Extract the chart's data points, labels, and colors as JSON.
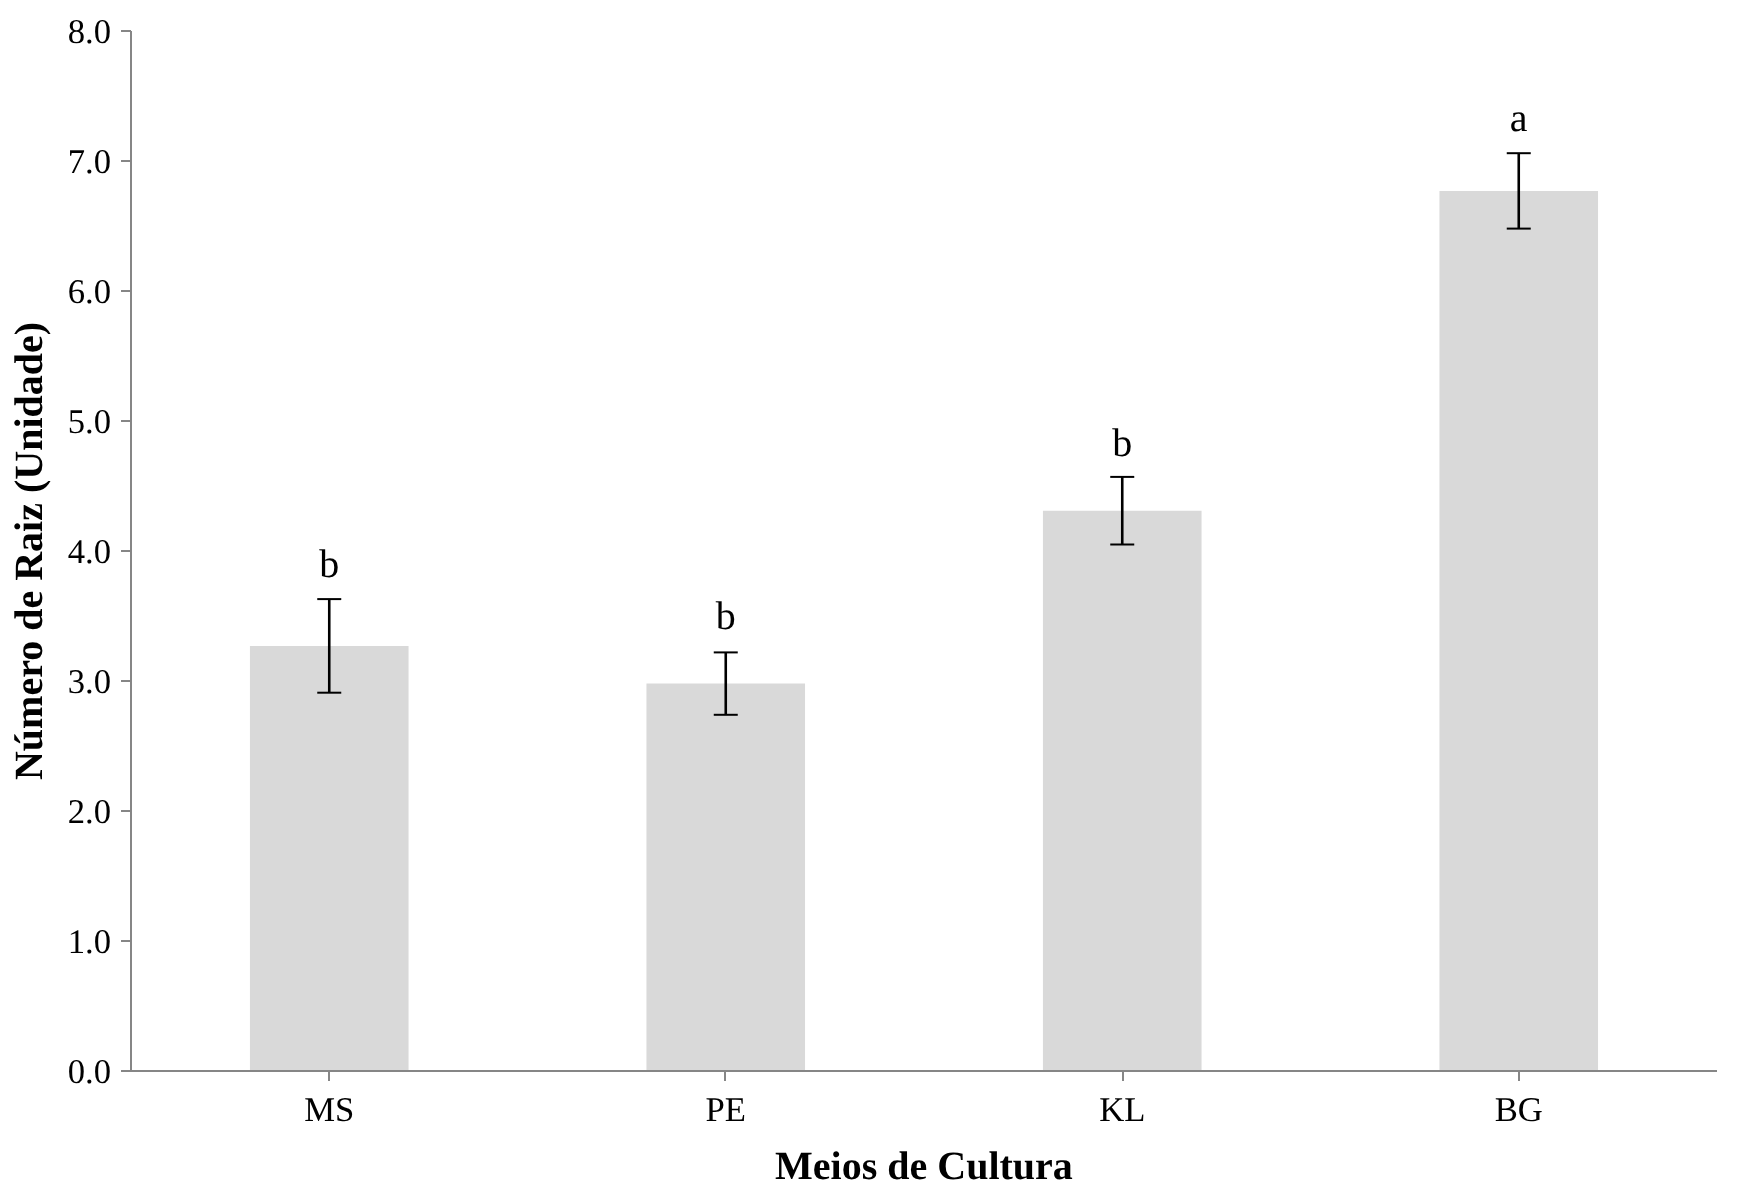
{
  "chart_data": {
    "type": "bar",
    "xlabel": "Meios de Cultura",
    "ylabel": "Número de Raiz (Unidade)",
    "categories": [
      "MS",
      "PE",
      "KL",
      "BG"
    ],
    "values": [
      3.27,
      2.98,
      4.31,
      6.77
    ],
    "errors": [
      0.36,
      0.24,
      0.26,
      0.29
    ],
    "color": "#d9d9d9",
    "ylim": [
      0,
      8
    ],
    "yticks": [
      {
        "value": 0,
        "label": "0.0"
      },
      {
        "value": 1,
        "label": "1.0"
      },
      {
        "value": 2,
        "label": "2.0"
      },
      {
        "value": 3,
        "label": "3.0"
      },
      {
        "value": 4,
        "label": "4.0"
      },
      {
        "value": 5,
        "label": "5.0"
      },
      {
        "value": 6,
        "label": "6.0"
      },
      {
        "value": 7,
        "label": "7.0"
      },
      {
        "value": 8,
        "label": "8.0"
      }
    ],
    "grid": false,
    "annotations": [
      {
        "text": "b",
        "x": "MS",
        "y": 3.63
      },
      {
        "text": "b",
        "x": "PE",
        "y": 3.23
      },
      {
        "text": "b",
        "x": "KL",
        "y": 4.56
      },
      {
        "text": "a",
        "x": "BG",
        "y": 7.06
      }
    ]
  }
}
